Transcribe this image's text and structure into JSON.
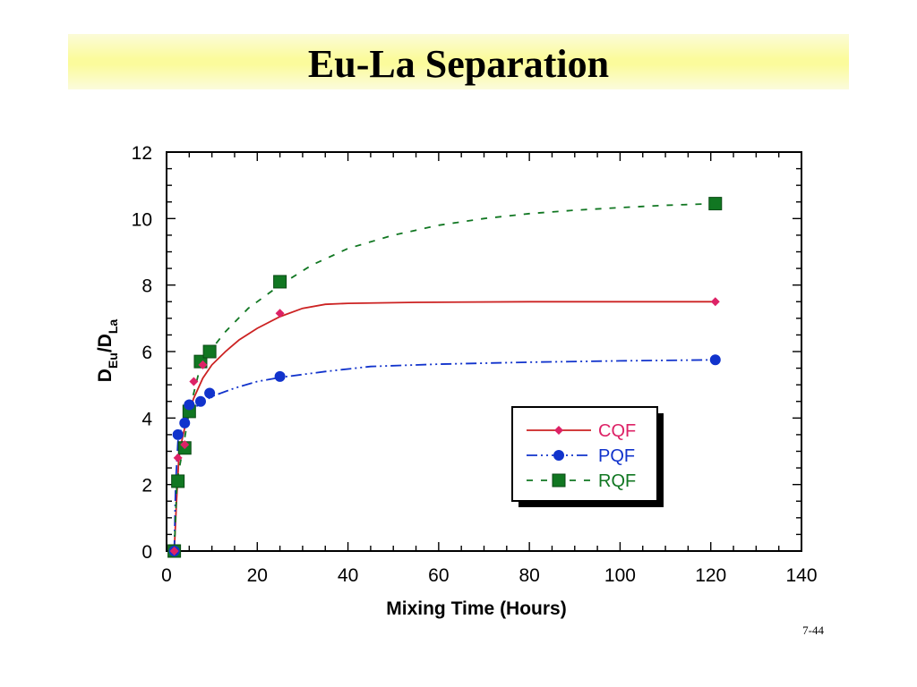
{
  "slide": {
    "title": "Eu-La Separation",
    "slide_number": "7-44"
  },
  "colors": {
    "title_band": "#fbfb9c",
    "CQF": "#dd2266",
    "CQF_line": "#cc2222",
    "PQF": "#1133cc",
    "RQF": "#117722"
  },
  "chart_data": {
    "type": "line",
    "xlabel": "Mixing Time (Hours)",
    "ylabel": {
      "base": "D",
      "sub1": "Eu",
      "sep": "/D",
      "sub2": "La"
    },
    "xlim": [
      0,
      140
    ],
    "ylim": [
      0,
      12
    ],
    "xticks": [
      0,
      20,
      40,
      60,
      80,
      100,
      120,
      140
    ],
    "yticks": [
      0,
      2,
      4,
      6,
      8,
      10,
      12
    ],
    "grid": false,
    "legend": "bottom-right",
    "series": [
      {
        "name": "CQF",
        "marker": "diamond",
        "line": "solid",
        "points": [
          [
            1.7,
            0
          ],
          [
            2.5,
            2.8
          ],
          [
            4,
            3.2
          ],
          [
            6,
            5.1
          ],
          [
            8,
            5.6
          ],
          [
            25,
            7.15
          ],
          [
            121,
            7.5
          ]
        ],
        "curve": [
          [
            1.7,
            0
          ],
          [
            2.2,
            1.5
          ],
          [
            2.7,
            2.8
          ],
          [
            3.5,
            3.4
          ],
          [
            4.5,
            4.0
          ],
          [
            6,
            4.6
          ],
          [
            8,
            5.2
          ],
          [
            10,
            5.6
          ],
          [
            13,
            6.0
          ],
          [
            16,
            6.35
          ],
          [
            20,
            6.7
          ],
          [
            25,
            7.05
          ],
          [
            30,
            7.3
          ],
          [
            35,
            7.42
          ],
          [
            40,
            7.45
          ],
          [
            55,
            7.48
          ],
          [
            80,
            7.5
          ],
          [
            121,
            7.5
          ]
        ]
      },
      {
        "name": "PQF",
        "marker": "circle",
        "line": "dash-dot-dot",
        "points": [
          [
            1.7,
            0
          ],
          [
            2.5,
            3.5
          ],
          [
            4,
            3.85
          ],
          [
            5,
            4.4
          ],
          [
            7.5,
            4.5
          ],
          [
            9.5,
            4.75
          ],
          [
            25,
            5.25
          ],
          [
            121,
            5.75
          ]
        ],
        "curve": [
          [
            1.7,
            0
          ],
          [
            2.0,
            2.0
          ],
          [
            2.5,
            3.3
          ],
          [
            3.5,
            3.8
          ],
          [
            5,
            4.15
          ],
          [
            7,
            4.4
          ],
          [
            10,
            4.65
          ],
          [
            15,
            4.9
          ],
          [
            20,
            5.1
          ],
          [
            25,
            5.22
          ],
          [
            35,
            5.4
          ],
          [
            45,
            5.55
          ],
          [
            60,
            5.62
          ],
          [
            80,
            5.68
          ],
          [
            100,
            5.72
          ],
          [
            121,
            5.75
          ]
        ]
      },
      {
        "name": "RQF",
        "marker": "square",
        "line": "dashed",
        "points": [
          [
            1.7,
            0
          ],
          [
            2.5,
            2.1
          ],
          [
            4,
            3.1
          ],
          [
            5,
            4.2
          ],
          [
            7.5,
            5.7
          ],
          [
            9.5,
            6.0
          ],
          [
            25,
            8.1
          ],
          [
            121,
            10.45
          ]
        ],
        "curve": [
          [
            1.7,
            0
          ],
          [
            2.3,
            2.1
          ],
          [
            3.5,
            3.0
          ],
          [
            5,
            4.2
          ],
          [
            7,
            5.3
          ],
          [
            9.5,
            6.0
          ],
          [
            13,
            6.6
          ],
          [
            18,
            7.3
          ],
          [
            25,
            8.0
          ],
          [
            32,
            8.6
          ],
          [
            40,
            9.1
          ],
          [
            50,
            9.5
          ],
          [
            60,
            9.8
          ],
          [
            70,
            10.0
          ],
          [
            80,
            10.15
          ],
          [
            90,
            10.25
          ],
          [
            100,
            10.33
          ],
          [
            110,
            10.4
          ],
          [
            121,
            10.45
          ]
        ]
      }
    ]
  }
}
